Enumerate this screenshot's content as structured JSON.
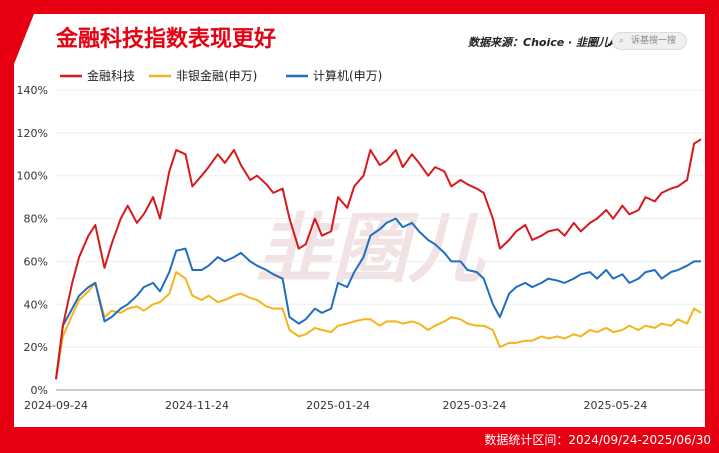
{
  "title": "金融科技指数表现更好",
  "source": "数据来源：Choice · 韭圈儿App",
  "search_placeholder": "诉基搜一搜",
  "footer": "数据统计区间：2024/09/24-2025/06/30",
  "watermark": "韭圈儿",
  "colors": {
    "accent": "#e60012",
    "fintech": "#d7191c",
    "nonbank": "#f5b31c",
    "computer": "#1f6ebf"
  },
  "chart_data": {
    "type": "line",
    "ylim": [
      0,
      140
    ],
    "yticks": [
      "0%",
      "20%",
      "40%",
      "60%",
      "80%",
      "100%",
      "120%",
      "140%"
    ],
    "xticks": [
      "2024-09-24",
      "2024-11-24",
      "2025-01-24",
      "2025-03-24",
      "2025-05-24"
    ],
    "x": [
      "2024-09-24",
      "2024-09-27",
      "2024-10-01",
      "2024-10-04",
      "2024-10-08",
      "2024-10-11",
      "2024-10-15",
      "2024-10-18",
      "2024-10-22",
      "2024-10-25",
      "2024-10-29",
      "2024-11-01",
      "2024-11-05",
      "2024-11-08",
      "2024-11-12",
      "2024-11-15",
      "2024-11-19",
      "2024-11-22",
      "2024-11-26",
      "2024-11-29",
      "2024-12-03",
      "2024-12-06",
      "2024-12-10",
      "2024-12-13",
      "2024-12-17",
      "2024-12-20",
      "2024-12-24",
      "2024-12-27",
      "2024-12-31",
      "2025-01-03",
      "2025-01-07",
      "2025-01-10",
      "2025-01-14",
      "2025-01-17",
      "2025-01-21",
      "2025-01-24",
      "2025-01-28",
      "2025-01-31",
      "2025-02-04",
      "2025-02-07",
      "2025-02-11",
      "2025-02-14",
      "2025-02-18",
      "2025-02-21",
      "2025-02-25",
      "2025-02-28",
      "2025-03-04",
      "2025-03-07",
      "2025-03-11",
      "2025-03-14",
      "2025-03-18",
      "2025-03-21",
      "2025-03-25",
      "2025-03-28",
      "2025-04-01",
      "2025-04-04",
      "2025-04-08",
      "2025-04-11",
      "2025-04-15",
      "2025-04-18",
      "2025-04-22",
      "2025-04-25",
      "2025-04-29",
      "2025-05-02",
      "2025-05-06",
      "2025-05-09",
      "2025-05-13",
      "2025-05-16",
      "2025-05-20",
      "2025-05-23",
      "2025-05-27",
      "2025-05-30",
      "2025-06-03",
      "2025-06-06",
      "2025-06-10",
      "2025-06-13",
      "2025-06-17",
      "2025-06-20",
      "2025-06-24",
      "2025-06-27",
      "2025-06-30"
    ],
    "series": [
      {
        "name": "金融科技",
        "values": [
          5,
          30,
          50,
          62,
          72,
          77,
          57,
          68,
          80,
          86,
          78,
          82,
          90,
          80,
          102,
          112,
          110,
          95,
          100,
          104,
          110,
          106,
          112,
          105,
          98,
          100,
          96,
          92,
          94,
          80,
          66,
          68,
          80,
          72,
          74,
          90,
          85,
          95,
          100,
          112,
          105,
          107,
          112,
          104,
          110,
          106,
          100,
          104,
          102,
          95,
          98,
          96,
          94,
          92,
          80,
          66,
          70,
          74,
          77,
          70,
          72,
          74,
          75,
          72,
          78,
          74,
          78,
          80,
          84,
          80,
          86,
          82,
          84,
          90,
          88,
          92,
          94,
          95,
          98,
          115,
          117
        ]
      },
      {
        "name": "非银金融(申万)",
        "values": [
          5,
          25,
          35,
          42,
          46,
          50,
          34,
          37,
          36,
          38,
          39,
          37,
          40,
          41,
          45,
          55,
          52,
          44,
          42,
          44,
          41,
          42,
          44,
          45,
          43,
          42,
          39,
          38,
          38,
          28,
          25,
          26,
          29,
          28,
          27,
          30,
          31,
          32,
          33,
          33,
          30,
          32,
          32,
          31,
          32,
          31,
          28,
          30,
          32,
          34,
          33,
          31,
          30,
          30,
          28,
          20,
          22,
          22,
          23,
          23,
          25,
          24,
          25,
          24,
          26,
          25,
          28,
          27,
          29,
          27,
          28,
          30,
          28,
          30,
          29,
          31,
          30,
          33,
          31,
          38,
          36
        ]
      },
      {
        "name": "计算机(申万)",
        "values": [
          5,
          30,
          38,
          44,
          48,
          50,
          32,
          34,
          38,
          40,
          44,
          48,
          50,
          46,
          55,
          65,
          66,
          56,
          56,
          58,
          62,
          60,
          62,
          64,
          60,
          58,
          56,
          54,
          52,
          34,
          31,
          33,
          38,
          36,
          38,
          50,
          48,
          55,
          62,
          72,
          75,
          78,
          80,
          76,
          78,
          74,
          70,
          68,
          64,
          60,
          60,
          56,
          55,
          52,
          40,
          34,
          45,
          48,
          50,
          48,
          50,
          52,
          51,
          50,
          52,
          54,
          55,
          52,
          56,
          52,
          54,
          50,
          52,
          55,
          56,
          52,
          55,
          56,
          58,
          60,
          60
        ]
      }
    ]
  },
  "legend": [
    "金融科技",
    "非银金融(申万)",
    "计算机(申万)"
  ]
}
